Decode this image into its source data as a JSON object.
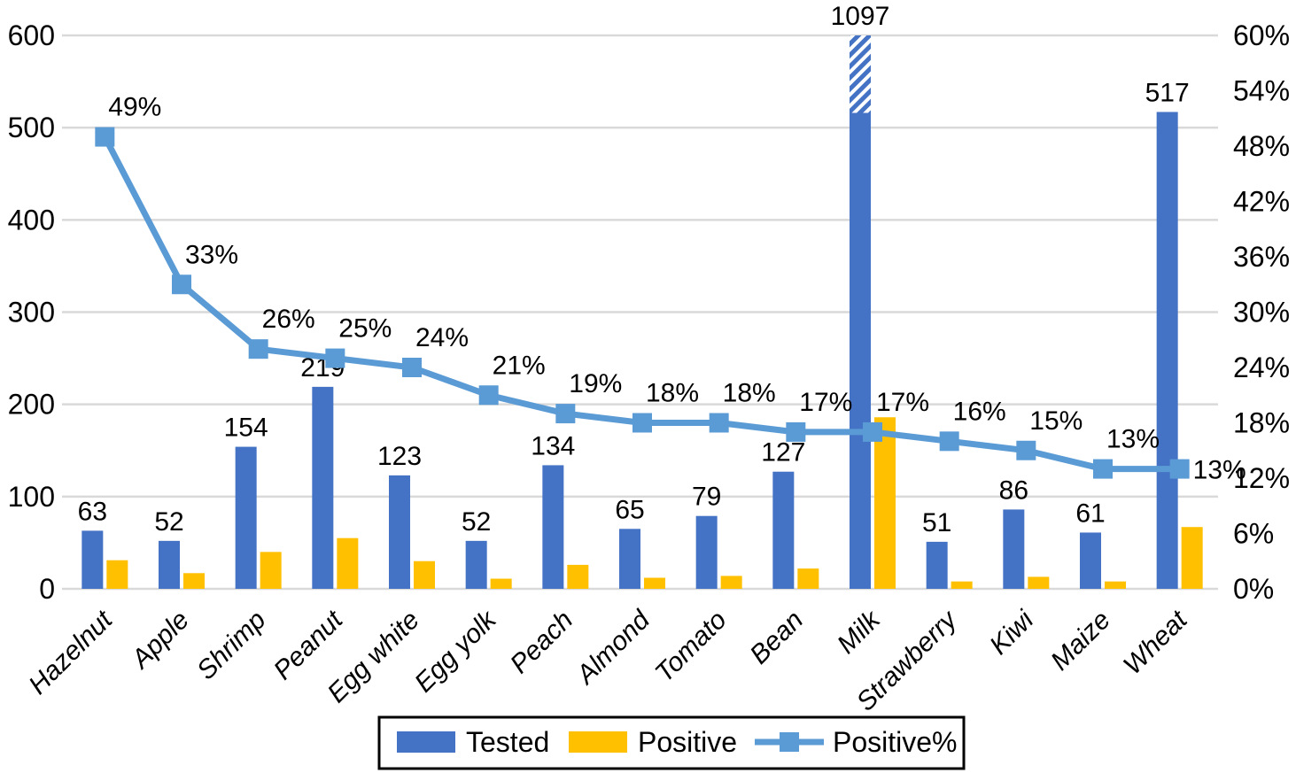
{
  "chart_data": {
    "type": "bar",
    "subtype": "combo-bar-line-dual-axis",
    "title": "",
    "categories": [
      "Hazelnut",
      "Apple",
      "Shrimp",
      "Peanut",
      "Egg white",
      "Egg yolk",
      "Peach",
      "Almond",
      "Tomato",
      "Bean",
      "Milk",
      "Strawberry",
      "Kiwi",
      "Maize",
      "Wheat"
    ],
    "series": [
      {
        "name": "Tested",
        "type": "bar",
        "axis": "left",
        "color": "#4472C4",
        "values": [
          63,
          52,
          154,
          219,
          123,
          52,
          134,
          65,
          79,
          127,
          1097,
          51,
          86,
          61,
          517
        ],
        "data_labels": [
          "63",
          "52",
          "154",
          "219",
          "123",
          "52",
          "134",
          "65",
          "79",
          "127",
          "1097",
          "51",
          "86",
          "61",
          "517"
        ]
      },
      {
        "name": "Positive",
        "type": "bar",
        "axis": "left",
        "color": "#FFC000",
        "values": [
          31,
          17,
          40,
          55,
          30,
          11,
          26,
          12,
          14,
          22,
          186,
          8,
          13,
          8,
          67
        ],
        "data_labels": []
      },
      {
        "name": "Positive%",
        "type": "line",
        "axis": "right",
        "color": "#5B9BD5",
        "marker": "square",
        "values": [
          49,
          33,
          26,
          25,
          24,
          21,
          19,
          18,
          18,
          17,
          17,
          16,
          15,
          13,
          13
        ],
        "data_labels": [
          "49%",
          "33%",
          "26%",
          "25%",
          "24%",
          "21%",
          "19%",
          "18%",
          "18%",
          "17%",
          "17%",
          "16%",
          "15%",
          "13%",
          "13%"
        ]
      }
    ],
    "left_axis": {
      "min": 0,
      "max": 600,
      "step": 100,
      "tick_labels": [
        "0",
        "100",
        "200",
        "300",
        "400",
        "500",
        "600"
      ]
    },
    "right_axis": {
      "min": 0,
      "max": 60,
      "step": 6,
      "tick_labels": [
        "0%",
        "6%",
        "12%",
        "18%",
        "24%",
        "30%",
        "36%",
        "42%",
        "48%",
        "54%",
        "60%"
      ]
    },
    "truncated_bar": {
      "category": "Milk",
      "series": "Tested",
      "value": 1097,
      "solid_to": 516,
      "hatch_to": 600
    },
    "grid": true,
    "legend_position": "bottom",
    "legend": {
      "items": [
        {
          "label": "Tested",
          "swatch": "bar",
          "color": "#4472C4"
        },
        {
          "label": "Positive",
          "swatch": "bar",
          "color": "#FFC000"
        },
        {
          "label": "Positive%",
          "swatch": "line-marker",
          "color": "#5B9BD5"
        }
      ]
    },
    "colors": {
      "tested_bar": "#4472C4",
      "positive_bar": "#FFC000",
      "pct_line": "#5B9BD5",
      "gridline": "#D9D9D9",
      "text": "#000000",
      "background": "#FFFFFF",
      "legend_border": "#000000"
    }
  }
}
